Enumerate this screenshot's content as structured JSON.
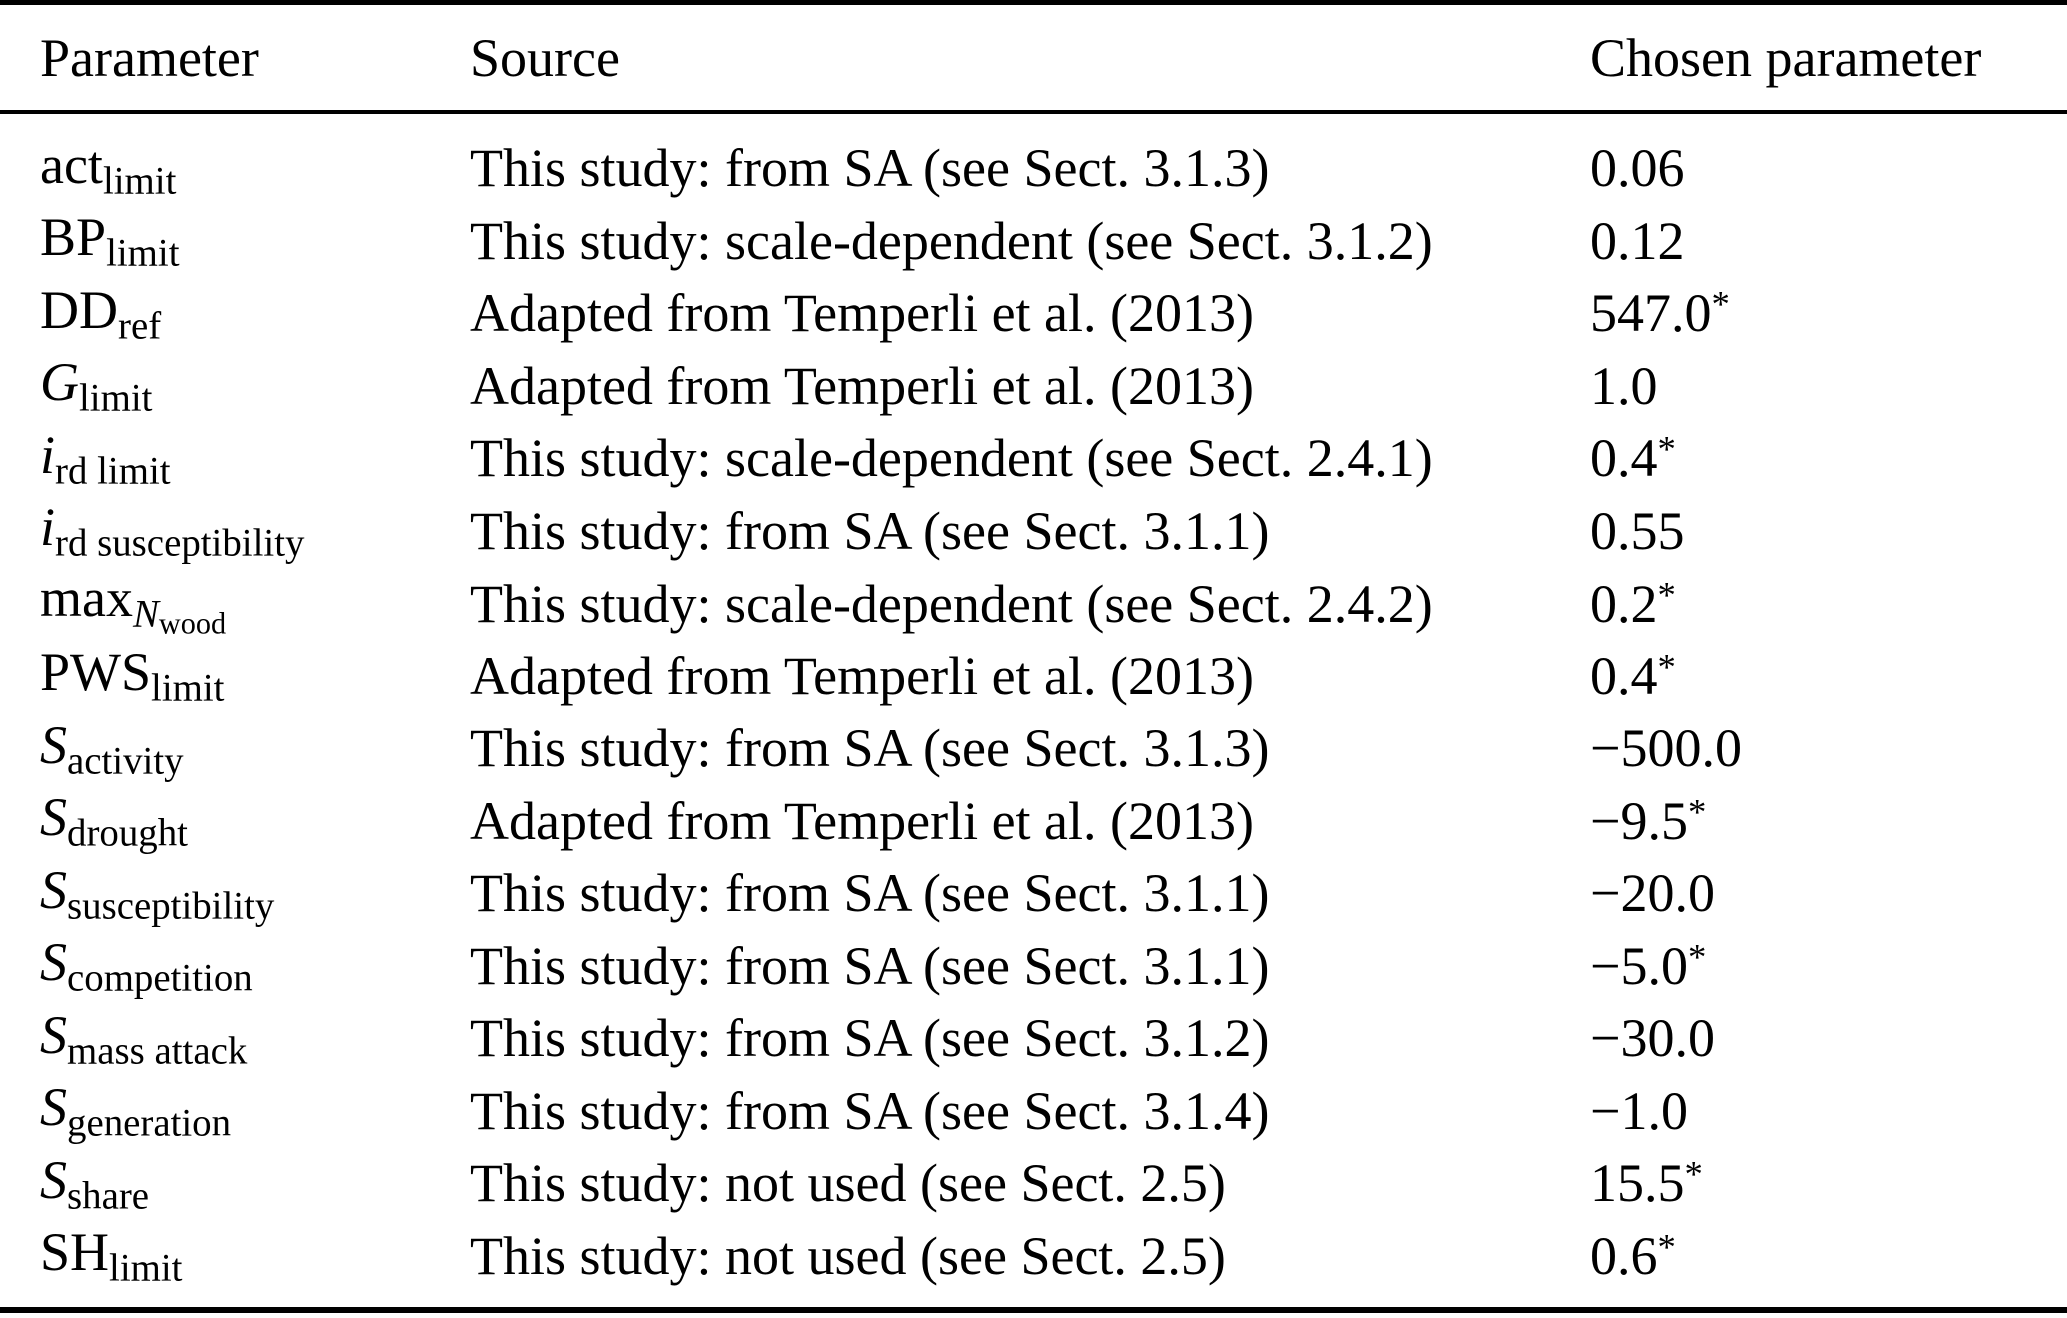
{
  "colors": {
    "background": "#ffffff",
    "text": "#000000",
    "rule": "#000000"
  },
  "table": {
    "columns": [
      "Parameter",
      "Source",
      "Chosen parameter"
    ],
    "rows": [
      {
        "param": [
          [
            "act",
            "base"
          ],
          [
            "limit",
            "sub"
          ]
        ],
        "source": "This study: from SA (see Sect. 3.1.3)",
        "value": "0.06",
        "star": false
      },
      {
        "param": [
          [
            "BP",
            "base"
          ],
          [
            "limit",
            "sub"
          ]
        ],
        "source": "This study: scale-dependent (see Sect. 3.1.2)",
        "value": "0.12",
        "star": false
      },
      {
        "param": [
          [
            "DD",
            "base"
          ],
          [
            "ref",
            "sub"
          ]
        ],
        "source": "Adapted from Temperli et al. (2013)",
        "value": "547.0",
        "star": true
      },
      {
        "param": [
          [
            "G",
            "base-italic"
          ],
          [
            "limit",
            "sub"
          ]
        ],
        "source": "Adapted from Temperli et al. (2013)",
        "value": "1.0",
        "star": false
      },
      {
        "param": [
          [
            "i",
            "base-italic"
          ],
          [
            "rd limit",
            "sub"
          ]
        ],
        "source": "This study: scale-dependent (see Sect. 2.4.1)",
        "value": "0.4",
        "star": true
      },
      {
        "param": [
          [
            "i",
            "base-italic"
          ],
          [
            "rd susceptibility",
            "sub"
          ]
        ],
        "source": "This study: from SA (see Sect. 3.1.1)",
        "value": "0.55",
        "star": false
      },
      {
        "param": [
          [
            "max",
            "base"
          ],
          [
            "N",
            "sub-italic"
          ],
          [
            "wood",
            "subsub"
          ]
        ],
        "source": "This study: scale-dependent (see Sect. 2.4.2)",
        "value": "0.2",
        "star": true
      },
      {
        "param": [
          [
            "PWS",
            "base"
          ],
          [
            "limit",
            "sub"
          ]
        ],
        "source": "Adapted from Temperli et al. (2013)",
        "value": "0.4",
        "star": true
      },
      {
        "param": [
          [
            "S",
            "base-italic"
          ],
          [
            "activity",
            "sub"
          ]
        ],
        "source": "This study: from SA (see Sect. 3.1.3)",
        "value": "−500.0",
        "star": false
      },
      {
        "param": [
          [
            "S",
            "base-italic"
          ],
          [
            "drought",
            "sub"
          ]
        ],
        "source": "Adapted from Temperli et al. (2013)",
        "value": "−9.5",
        "star": true
      },
      {
        "param": [
          [
            "S",
            "base-italic"
          ],
          [
            "susceptibility",
            "sub"
          ]
        ],
        "source": "This study: from SA (see Sect. 3.1.1)",
        "value": "−20.0",
        "star": false
      },
      {
        "param": [
          [
            "S",
            "base-italic"
          ],
          [
            "competition",
            "sub"
          ]
        ],
        "source": "This study: from SA (see Sect. 3.1.1)",
        "value": "−5.0",
        "star": true
      },
      {
        "param": [
          [
            "S",
            "base-italic"
          ],
          [
            "mass attack",
            "sub"
          ]
        ],
        "source": "This study: from SA (see Sect. 3.1.2)",
        "value": "−30.0",
        "star": false
      },
      {
        "param": [
          [
            "S",
            "base-italic"
          ],
          [
            "generation",
            "sub"
          ]
        ],
        "source": "This study: from SA (see Sect. 3.1.4)",
        "value": "−1.0",
        "star": false
      },
      {
        "param": [
          [
            "S",
            "base-italic"
          ],
          [
            "share",
            "sub"
          ]
        ],
        "source": "This study: not used (see Sect. 2.5)",
        "value": "15.5",
        "star": true
      },
      {
        "param": [
          [
            "SH",
            "base"
          ],
          [
            "limit",
            "sub"
          ]
        ],
        "source": "This study: not used (see Sect. 2.5)",
        "value": "0.6",
        "star": true
      }
    ],
    "asterisk": "*"
  }
}
